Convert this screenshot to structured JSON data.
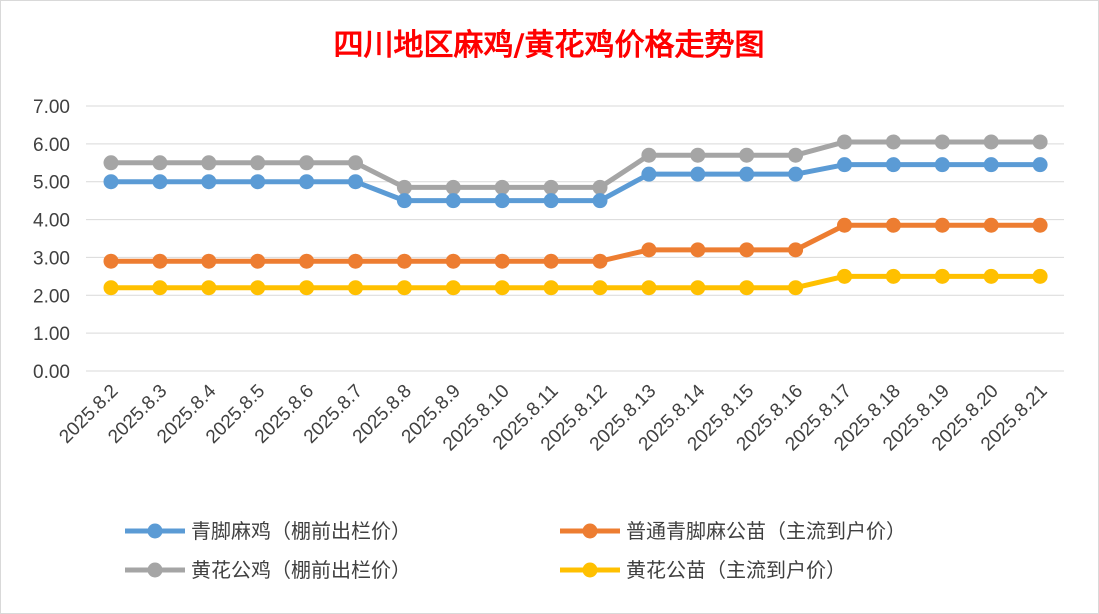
{
  "chart_data": {
    "type": "line",
    "title": "四川地区麻鸡/黄花鸡价格走势图",
    "xlabel": "",
    "ylabel": "",
    "ylim": [
      0,
      7
    ],
    "yticks": [
      "0.00",
      "1.00",
      "2.00",
      "3.00",
      "4.00",
      "5.00",
      "6.00",
      "7.00"
    ],
    "grid": "horizontal",
    "legend_position": "bottom",
    "categories": [
      "2025.8.2",
      "2025.8.3",
      "2025.8.4",
      "2025.8.5",
      "2025.8.6",
      "2025.8.7",
      "2025.8.8",
      "2025.8.9",
      "2025.8.10",
      "2025.8.11",
      "2025.8.12",
      "2025.8.13",
      "2025.8.14",
      "2025.8.15",
      "2025.8.16",
      "2025.8.17",
      "2025.8.18",
      "2025.8.19",
      "2025.8.20",
      "2025.8.21"
    ],
    "series": [
      {
        "name": "青脚麻鸡（棚前出栏价）",
        "color": "#5b9bd5",
        "values": [
          5.0,
          5.0,
          5.0,
          5.0,
          5.0,
          5.0,
          4.5,
          4.5,
          4.5,
          4.5,
          4.5,
          5.2,
          5.2,
          5.2,
          5.2,
          5.45,
          5.45,
          5.45,
          5.45,
          5.45
        ]
      },
      {
        "name": "普通青脚麻公苗（主流到户价）",
        "color": "#ed7d31",
        "values": [
          2.9,
          2.9,
          2.9,
          2.9,
          2.9,
          2.9,
          2.9,
          2.9,
          2.9,
          2.9,
          2.9,
          3.2,
          3.2,
          3.2,
          3.2,
          3.85,
          3.85,
          3.85,
          3.85,
          3.85
        ]
      },
      {
        "name": "黄花公鸡（棚前出栏价）",
        "color": "#a5a5a5",
        "values": [
          5.5,
          5.5,
          5.5,
          5.5,
          5.5,
          5.5,
          4.85,
          4.85,
          4.85,
          4.85,
          4.85,
          5.7,
          5.7,
          5.7,
          5.7,
          6.05,
          6.05,
          6.05,
          6.05,
          6.05
        ]
      },
      {
        "name": "黄花公苗（主流到户价）",
        "color": "#ffc000",
        "values": [
          2.2,
          2.2,
          2.2,
          2.2,
          2.2,
          2.2,
          2.2,
          2.2,
          2.2,
          2.2,
          2.2,
          2.2,
          2.2,
          2.2,
          2.2,
          2.5,
          2.5,
          2.5,
          2.5,
          2.5
        ]
      }
    ]
  }
}
